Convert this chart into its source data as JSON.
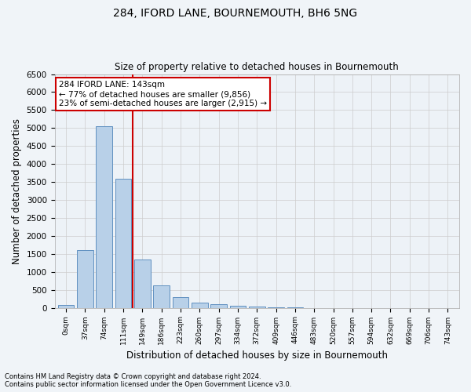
{
  "title": "284, IFORD LANE, BOURNEMOUTH, BH6 5NG",
  "subtitle": "Size of property relative to detached houses in Bournemouth",
  "xlabel": "Distribution of detached houses by size in Bournemouth",
  "ylabel": "Number of detached properties",
  "footnote1": "Contains HM Land Registry data © Crown copyright and database right 2024.",
  "footnote2": "Contains public sector information licensed under the Open Government Licence v3.0.",
  "categories": [
    "0sqm",
    "37sqm",
    "74sqm",
    "111sqm",
    "149sqm",
    "186sqm",
    "223sqm",
    "260sqm",
    "297sqm",
    "334sqm",
    "372sqm",
    "409sqm",
    "446sqm",
    "483sqm",
    "520sqm",
    "557sqm",
    "594sqm",
    "632sqm",
    "669sqm",
    "706sqm",
    "743sqm"
  ],
  "values": [
    80,
    1600,
    5050,
    3580,
    1350,
    620,
    300,
    145,
    90,
    50,
    25,
    10,
    5,
    0,
    0,
    0,
    0,
    0,
    0,
    0,
    0
  ],
  "bar_color": "#b8d0e8",
  "bar_edge_color": "#6090c0",
  "vline_color": "#cc0000",
  "ylim": [
    0,
    6500
  ],
  "yticks": [
    0,
    500,
    1000,
    1500,
    2000,
    2500,
    3000,
    3500,
    4000,
    4500,
    5000,
    5500,
    6000,
    6500
  ],
  "annotation_text": "284 IFORD LANE: 143sqm\n← 77% of detached houses are smaller (9,856)\n23% of semi-detached houses are larger (2,915) →",
  "annotation_box_color": "#ffffff",
  "annotation_box_edge_color": "#cc0000",
  "bg_color": "#f0f4f8",
  "plot_bg_color": "#edf2f7",
  "grid_color": "#cccccc",
  "vline_pos": 3.5
}
